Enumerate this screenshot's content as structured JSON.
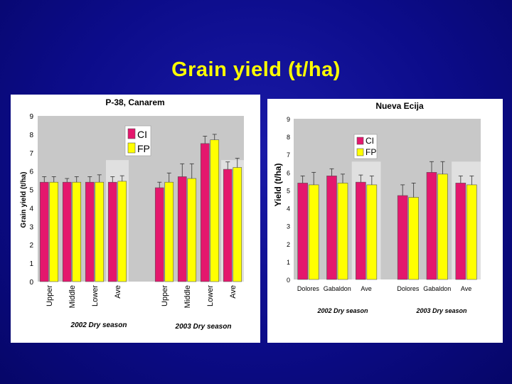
{
  "title": "Grain yield (t/ha)",
  "colors": {
    "ci": "#e4176d",
    "fp": "#ffff00",
    "plot_bg": "#c8c8c8",
    "ave_bg": "#e0e0e0",
    "bar_outline": "#555555"
  },
  "chart_data": [
    {
      "type": "bar",
      "title": "P-38, Canarem",
      "ylabel": "Grain yield (t/ha)",
      "ylim": [
        0,
        9
      ],
      "yticks": [
        "0",
        "1",
        "2",
        "3",
        "4",
        "5",
        "6",
        "7",
        "8",
        "9"
      ],
      "legend": [
        "CI",
        "FP"
      ],
      "legend_position": "top-left",
      "categories": [
        "Upper",
        "Middle",
        "Lower",
        "Ave",
        "Upper",
        "Middle",
        "Lower",
        "Ave"
      ],
      "groups": [
        "2002 Dry season",
        "2003 Dry season"
      ],
      "group_sizes": [
        4,
        4
      ],
      "highlight": [
        3,
        7
      ],
      "series": [
        {
          "name": "CI",
          "values": [
            5.4,
            5.4,
            5.4,
            5.4,
            5.1,
            5.7,
            7.5,
            6.1
          ],
          "errors": [
            0.3,
            0.2,
            0.3,
            0.3,
            0.3,
            0.7,
            0.4,
            0.4
          ]
        },
        {
          "name": "FP",
          "values": [
            5.4,
            5.4,
            5.4,
            5.45,
            5.4,
            5.6,
            7.7,
            6.2
          ],
          "errors": [
            0.3,
            0.3,
            0.4,
            0.3,
            0.5,
            0.8,
            0.3,
            0.5
          ]
        }
      ]
    },
    {
      "type": "bar",
      "title": "Nueva Ecija",
      "ylabel": "Yield (t/ha)",
      "ylim": [
        0,
        9
      ],
      "yticks": [
        "0",
        "1",
        "2",
        "3",
        "4",
        "5",
        "6",
        "7",
        "8",
        "9"
      ],
      "legend": [
        "CI",
        "FP"
      ],
      "legend_position": "top-center",
      "categories": [
        "Dolores",
        "Gabaldon",
        "Ave",
        "Dolores",
        "Gabaldon",
        "Ave"
      ],
      "groups": [
        "2002 Dry season",
        "2003 Dry season"
      ],
      "group_sizes": [
        3,
        3
      ],
      "highlight": [
        2,
        5
      ],
      "series": [
        {
          "name": "CI",
          "values": [
            5.4,
            5.8,
            5.45,
            4.7,
            6.0,
            5.4
          ],
          "errors": [
            0.4,
            0.4,
            0.4,
            0.6,
            0.6,
            0.4
          ]
        },
        {
          "name": "FP",
          "values": [
            5.3,
            5.4,
            5.3,
            4.6,
            5.9,
            5.3
          ],
          "errors": [
            0.7,
            0.5,
            0.5,
            0.8,
            0.7,
            0.5
          ]
        }
      ]
    }
  ]
}
